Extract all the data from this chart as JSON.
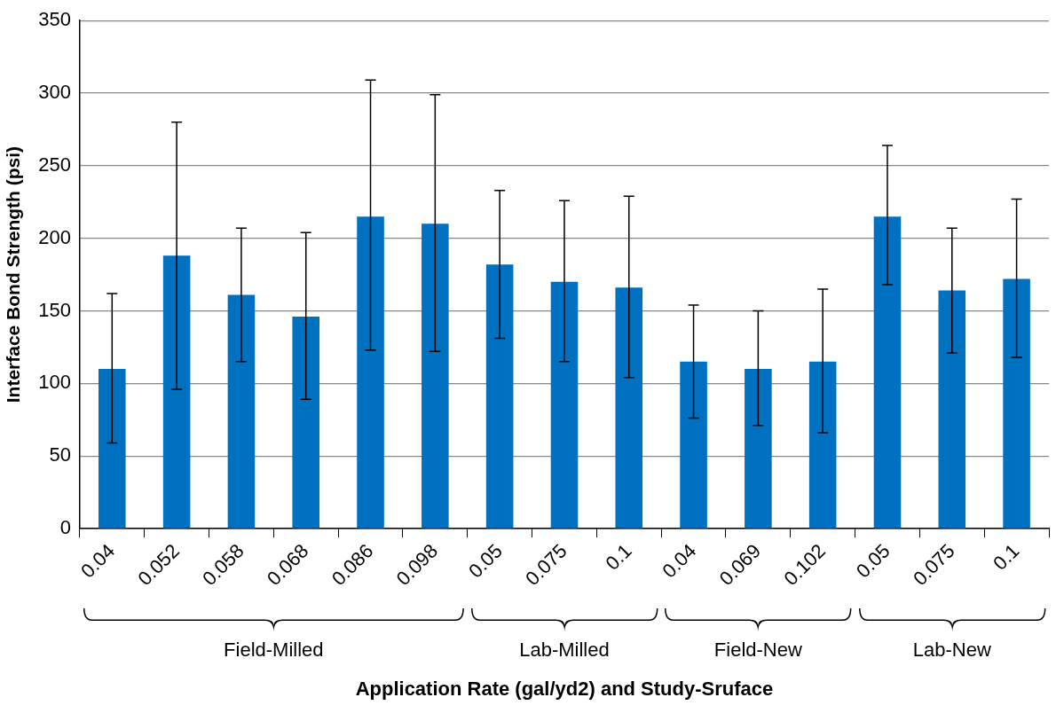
{
  "chart_data": {
    "type": "bar",
    "xlabel": "Application Rate (gal/yd2) and Study-Sruface",
    "ylabel": "Interface Bond Strength (psi)",
    "categories": [
      "0.04",
      "0.052",
      "0.058",
      "0.068",
      "0.086",
      "0.098",
      "0.05",
      "0.075",
      "0.1",
      "0.04",
      "0.069",
      "0.102",
      "0.05",
      "0.075",
      "0.1"
    ],
    "values": [
      110,
      188,
      161,
      146,
      215,
      210,
      182,
      170,
      166,
      115,
      110,
      115,
      215,
      164,
      172
    ],
    "errors": [
      [
        59,
        162
      ],
      [
        96,
        280
      ],
      [
        115,
        207
      ],
      [
        89,
        204
      ],
      [
        123,
        309
      ],
      [
        122,
        299
      ],
      [
        131,
        233
      ],
      [
        115,
        226
      ],
      [
        104,
        229
      ],
      [
        76,
        154
      ],
      [
        71,
        150
      ],
      [
        66,
        165
      ],
      [
        168,
        264
      ],
      [
        121,
        207
      ],
      [
        118,
        227
      ]
    ],
    "color": "#0070c0",
    "ylim": [
      0,
      350
    ],
    "yticks": [
      0,
      50,
      100,
      150,
      200,
      250,
      300,
      350
    ],
    "grid": "y",
    "legend": false,
    "annotations": [
      "Field-Milled",
      "Lab-Milled",
      "Field-New",
      "Lab-New"
    ]
  }
}
